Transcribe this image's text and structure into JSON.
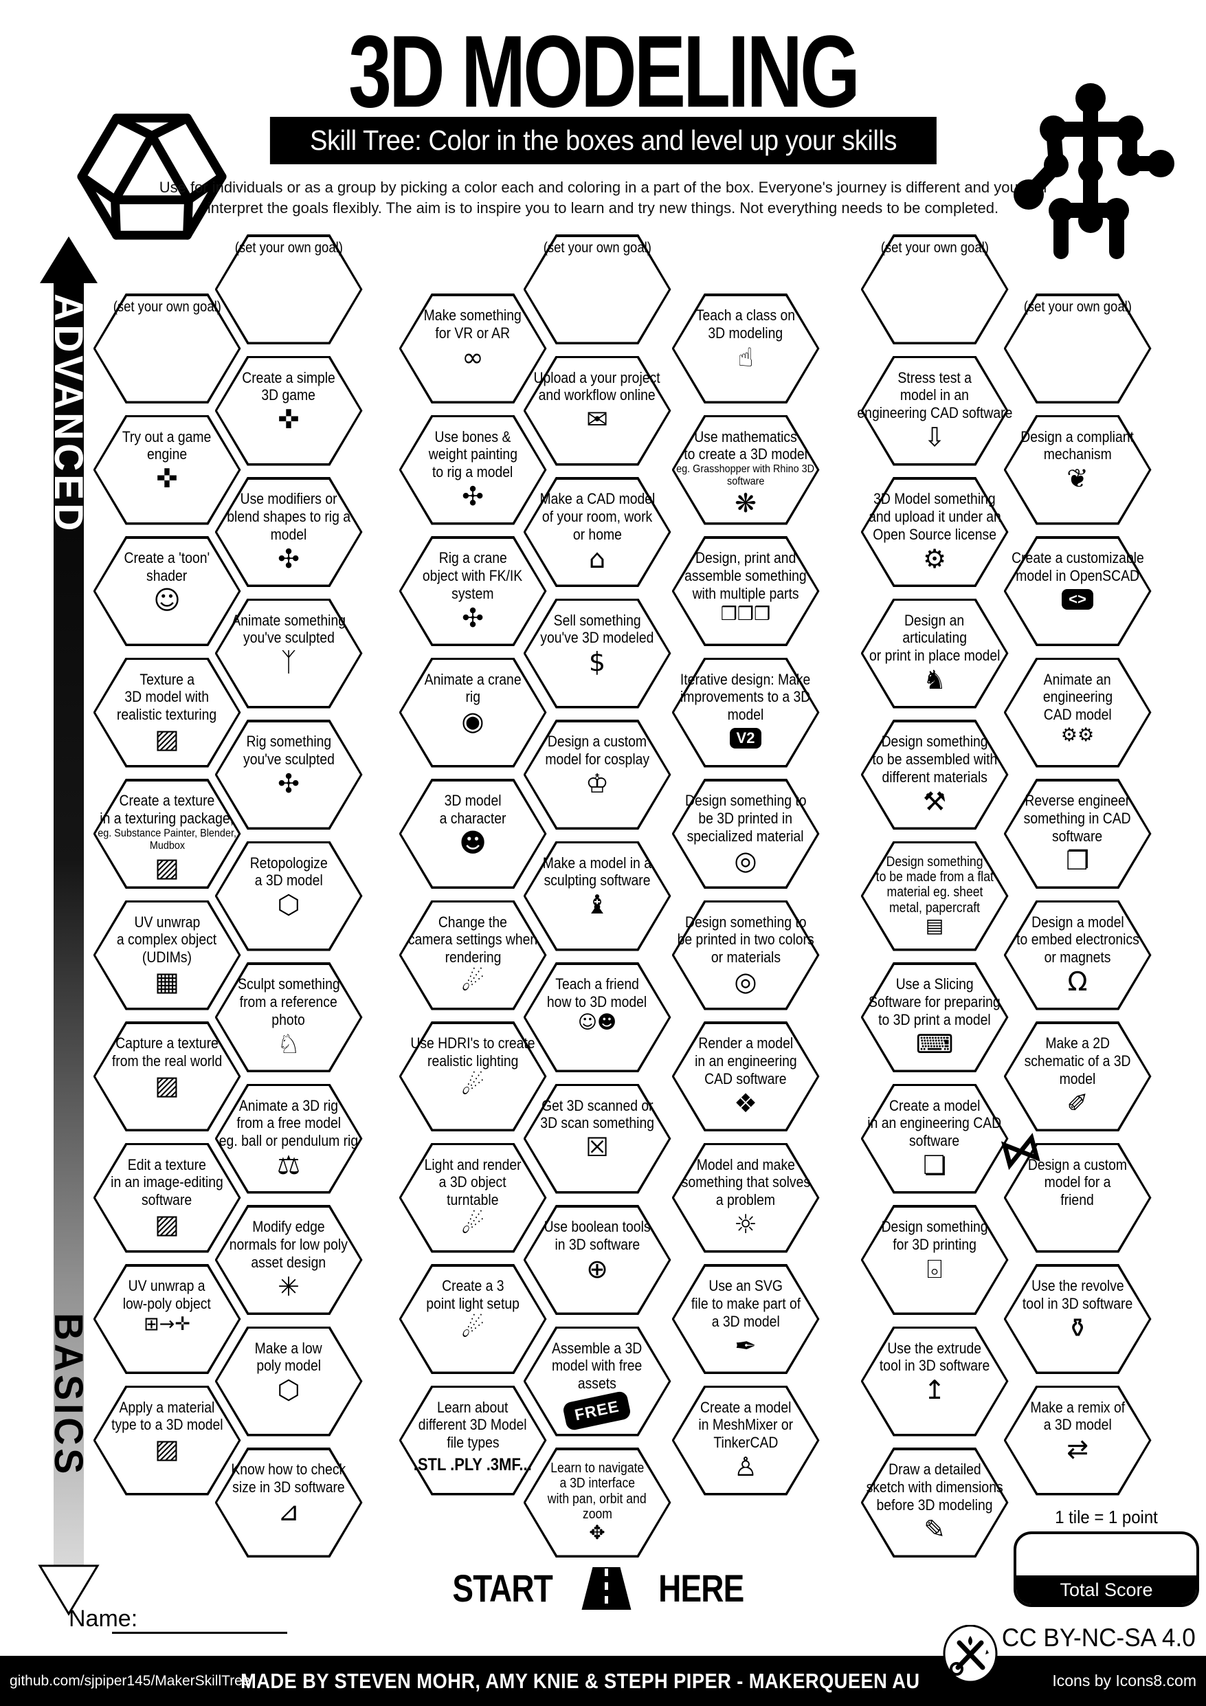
{
  "title": "3D MODELING",
  "subtitle": "Skill Tree:  Color in the boxes and level up your skills",
  "intro_line1": "Use for individuals or as a group by picking a color each and coloring in a part of the box.  Everyone's journey is different and you can",
  "intro_line2": "interpret the goals flexibly.  The aim is to inspire you to learn and try new things. Not everything needs to be completed.",
  "axis": {
    "advanced": "ADVANCED",
    "basics": "BASICS"
  },
  "start_here": {
    "start": "START",
    "here": "HERE"
  },
  "score": {
    "tile_note": "1 tile = 1 point",
    "total_label": "Total Score"
  },
  "name_label": "Name:",
  "license": "CC BY-NC-SA 4.0",
  "footer": {
    "left": "github.com/sjpiper145/MakerSkillTree",
    "center": "MADE BY STEVEN MOHR, AMY KNIE & STEPH PIPER  -  MAKERQUEEN AU",
    "right": "Icons by Icons8.com"
  },
  "colors": {
    "ink": "#000000",
    "paper": "#ffffff"
  },
  "icon_glyphs": {
    "gamepad-icon": "✜",
    "toon-face-icon": "☺",
    "texture-swatch-icon": "▨",
    "udim-grid-icon": "▦",
    "cube-unwrap-icon": "⊞→✛",
    "rig-icon": "✣",
    "walking-person-icon": "ᛉ",
    "wireframe-hexagon-icon": "⬡",
    "dog-icon": "♘",
    "pendulum-icon": "⚖",
    "vertex-normals-icon": "✳",
    "ruler-icon": "⊿",
    "vr-goggles-icon": "∞",
    "camera-icon": "◉",
    "character-face-icon": "☻",
    "spotlight-icon": "☄",
    "document-upload-icon": "✉",
    "house-icon": "⌂",
    "money-bag-icon": "$",
    "cosplay-icon": "♔",
    "statue-icon": "♝",
    "teach-friends-icon": "☺☻",
    "body-scan-icon": "☒",
    "boolean-icon": "⊕",
    "axis-icon": "✥",
    "presenter-icon": "☝",
    "gear-flower-icon": "❋",
    "cubes-icon": "❒❒❒",
    "filament-spool-icon": "◎",
    "sparkle-cube-icon": "❖",
    "lightbulb-icon": "☼",
    "bezier-pen-icon": "✒",
    "rabbit-icon": "♙",
    "stress-press-icon": "⇩",
    "open-source-gear-icon": "⚙",
    "dragon-icon": "♞",
    "tools-icon": "⚒",
    "flat-sheet-icon": "▤",
    "slicer-laptop-icon": "⌨",
    "cad-cube-icon": "❏",
    "printer-icon": "⌻",
    "extrude-icon": "↥",
    "sketch-icon": "✎",
    "brain-icon": "❦",
    "gears-icon": "⚙⚙",
    "wire-cube-icon": "❐",
    "led-icon": "Ω",
    "schematic-icon": "✐",
    "gift-bow-icon": "⋈",
    "vase-icon": "⚱",
    "remix-arrows-icon": "⇄",
    "free-badge": "FREE",
    "v2-badge": "V2",
    "code-badge": "<>"
  },
  "hexes": [
    {
      "col": 0,
      "row": 0,
      "goal": true,
      "lines": [
        "(set your own goal)"
      ]
    },
    {
      "col": 0,
      "row": 1,
      "lines": [
        "Try out a game",
        "engine"
      ],
      "icon": "gamepad-icon"
    },
    {
      "col": 0,
      "row": 2,
      "lines": [
        "Create a 'toon'",
        "shader"
      ],
      "icon": "toon-face-icon"
    },
    {
      "col": 0,
      "row": 3,
      "lines": [
        "Texture a",
        "3D model with",
        "realistic texturing"
      ],
      "icon": "texture-swatch-icon"
    },
    {
      "col": 0,
      "row": 4,
      "lines": [
        "Create a texture",
        "in a texturing package,"
      ],
      "sub": [
        "eg. Substance Painter, Blender,",
        "Mudbox"
      ],
      "icon": "texture-swatch-icon"
    },
    {
      "col": 0,
      "row": 5,
      "lines": [
        "UV unwrap",
        "a complex object",
        "(UDIMs)"
      ],
      "icon": "udim-grid-icon"
    },
    {
      "col": 0,
      "row": 6,
      "lines": [
        "Capture a texture",
        "from the real world"
      ],
      "icon": "texture-swatch-icon"
    },
    {
      "col": 0,
      "row": 7,
      "lines": [
        "Edit a texture",
        "in an image-editing",
        "software"
      ],
      "icon": "texture-swatch-icon"
    },
    {
      "col": 0,
      "row": 8,
      "lines": [
        "UV unwrap a",
        "low-poly object"
      ],
      "icon": "cube-unwrap-icon",
      "small_icon": true
    },
    {
      "col": 0,
      "row": 9,
      "lines": [
        "Apply a material",
        "type to a 3D model"
      ],
      "icon": "texture-swatch-icon"
    },
    {
      "col": 1,
      "row": 0,
      "goal": true,
      "lines": [
        "(set your own goal)"
      ]
    },
    {
      "col": 1,
      "row": 1,
      "lines": [
        "Create a simple",
        "3D game"
      ],
      "icon": "gamepad-icon"
    },
    {
      "col": 1,
      "row": 2,
      "lines": [
        "Use modifiers or",
        "blend shapes to rig a",
        "model"
      ],
      "icon": "rig-icon"
    },
    {
      "col": 1,
      "row": 3,
      "lines": [
        "Animate something",
        "you've sculpted"
      ],
      "icon": "walking-person-icon"
    },
    {
      "col": 1,
      "row": 4,
      "lines": [
        "Rig something",
        "you've sculpted"
      ],
      "icon": "rig-icon"
    },
    {
      "col": 1,
      "row": 5,
      "lines": [
        "Retopologize",
        "a 3D model"
      ],
      "icon": "wireframe-hexagon-icon"
    },
    {
      "col": 1,
      "row": 6,
      "lines": [
        "Sculpt something",
        "from a reference",
        "photo"
      ],
      "icon": "dog-icon"
    },
    {
      "col": 1,
      "row": 7,
      "lines": [
        "Animate a 3D rig",
        "from a free model",
        "eg. ball or pendulum rig"
      ],
      "icon": "pendulum-icon"
    },
    {
      "col": 1,
      "row": 8,
      "lines": [
        "Modify edge",
        "normals for low poly",
        "asset design"
      ],
      "icon": "vertex-normals-icon"
    },
    {
      "col": 1,
      "row": 9,
      "lines": [
        "Make a low",
        "poly model"
      ],
      "icon": "wireframe-hexagon-icon"
    },
    {
      "col": 1,
      "row": 10,
      "lines": [
        "Know how to check",
        "size in 3D software"
      ],
      "icon": "ruler-icon"
    },
    {
      "col": 2,
      "row": 0,
      "lines": [
        "Make something",
        "for VR or AR"
      ],
      "icon": "vr-goggles-icon"
    },
    {
      "col": 2,
      "row": 1,
      "lines": [
        "Use bones &",
        "weight painting",
        "to rig a model"
      ],
      "icon": "rig-icon"
    },
    {
      "col": 2,
      "row": 2,
      "lines": [
        "Rig a crane",
        "object with FK/IK",
        "system"
      ],
      "icon": "rig-icon"
    },
    {
      "col": 2,
      "row": 3,
      "lines": [
        "Animate a crane",
        "rig"
      ],
      "icon": "camera-icon"
    },
    {
      "col": 2,
      "row": 4,
      "lines": [
        "3D model",
        "a character"
      ],
      "icon": "character-face-icon"
    },
    {
      "col": 2,
      "row": 5,
      "lines": [
        "Change the",
        "camera settings when",
        "rendering"
      ],
      "icon": "spotlight-icon"
    },
    {
      "col": 2,
      "row": 6,
      "lines": [
        "Use HDRI's to create",
        "realistic lighting"
      ],
      "icon": "spotlight-icon"
    },
    {
      "col": 2,
      "row": 7,
      "lines": [
        "Light and render",
        "a 3D object",
        "turntable"
      ],
      "icon": "spotlight-icon"
    },
    {
      "col": 2,
      "row": 8,
      "lines": [
        "Create a 3",
        "point light setup"
      ],
      "icon": "spotlight-icon"
    },
    {
      "col": 2,
      "row": 9,
      "lines": [
        "Learn about",
        "different 3D Model",
        "file types"
      ],
      "big_sub": ".STL .PLY .3MF..."
    },
    {
      "col": 3,
      "row": 0,
      "goal": true,
      "lines": [
        "(set your own goal)"
      ]
    },
    {
      "col": 3,
      "row": 1,
      "lines": [
        "Upload a your project",
        "and workflow online"
      ],
      "icon": "document-upload-icon"
    },
    {
      "col": 3,
      "row": 2,
      "lines": [
        "Make a CAD model",
        "of your room, work",
        "or home"
      ],
      "icon": "house-icon"
    },
    {
      "col": 3,
      "row": 3,
      "lines": [
        "Sell something",
        "you've 3D modeled"
      ],
      "icon": "money-bag-icon"
    },
    {
      "col": 3,
      "row": 4,
      "lines": [
        "Design a custom",
        "model for cosplay"
      ],
      "icon": "cosplay-icon"
    },
    {
      "col": 3,
      "row": 5,
      "lines": [
        "Make a model in a",
        "sculpting software"
      ],
      "icon": "statue-icon"
    },
    {
      "col": 3,
      "row": 6,
      "lines": [
        "Teach a friend",
        "how to 3D model"
      ],
      "icon": "teach-friends-icon",
      "small_icon": true
    },
    {
      "col": 3,
      "row": 7,
      "lines": [
        "Get 3D scanned or",
        "3D scan something"
      ],
      "icon": "body-scan-icon"
    },
    {
      "col": 3,
      "row": 8,
      "lines": [
        "Use boolean tools",
        "in 3D software"
      ],
      "icon": "boolean-icon"
    },
    {
      "col": 3,
      "row": 9,
      "lines": [
        "Assemble a 3D",
        "model with free",
        "assets"
      ],
      "icon": "free-badge"
    },
    {
      "col": 3,
      "row": 10,
      "lines": [
        "Learn to navigate",
        "a 3D interface",
        "with pan, orbit and",
        "zoom"
      ],
      "icon": "axis-icon"
    },
    {
      "col": 4,
      "row": 0,
      "lines": [
        "Teach a class on",
        "3D modeling"
      ],
      "icon": "presenter-icon"
    },
    {
      "col": 4,
      "row": 1,
      "lines": [
        "Use mathematics",
        "to create a 3D model"
      ],
      "sub": [
        "eg. Grasshopper with Rhino 3D",
        "software"
      ],
      "icon": "gear-flower-icon"
    },
    {
      "col": 4,
      "row": 2,
      "lines": [
        "Design, print and",
        "assemble something",
        "with multiple parts"
      ],
      "icon": "cubes-icon",
      "small_icon": true
    },
    {
      "col": 4,
      "row": 3,
      "lines": [
        "Iterative design:  Make",
        "improvements to a 3D",
        "model"
      ],
      "icon": "v2-badge"
    },
    {
      "col": 4,
      "row": 4,
      "lines": [
        "Design something to",
        "be 3D printed in",
        "specialized material"
      ],
      "icon": "filament-spool-icon"
    },
    {
      "col": 4,
      "row": 5,
      "lines": [
        "Design something to",
        "be printed in two colors",
        "or materials"
      ],
      "icon": "filament-spool-icon"
    },
    {
      "col": 4,
      "row": 6,
      "lines": [
        "Render a model",
        "in an engineering",
        "CAD software"
      ],
      "icon": "sparkle-cube-icon"
    },
    {
      "col": 4,
      "row": 7,
      "lines": [
        "Model and make",
        "something that solves",
        "a problem"
      ],
      "icon": "lightbulb-icon"
    },
    {
      "col": 4,
      "row": 8,
      "lines": [
        "Use an SVG",
        "file to make part of",
        "a 3D model"
      ],
      "icon": "bezier-pen-icon"
    },
    {
      "col": 4,
      "row": 9,
      "lines": [
        "Create a model",
        "in MeshMixer or",
        "TinkerCAD"
      ],
      "icon": "rabbit-icon"
    },
    {
      "col": 5,
      "row": 0,
      "goal": true,
      "lines": [
        "(set your own goal)"
      ]
    },
    {
      "col": 5,
      "row": 1,
      "lines": [
        "Stress test a",
        "model in an",
        "engineering CAD software"
      ],
      "icon": "stress-press-icon"
    },
    {
      "col": 5,
      "row": 2,
      "lines": [
        "3D Model something",
        "and upload it under an",
        "Open Source license"
      ],
      "icon": "open-source-gear-icon"
    },
    {
      "col": 5,
      "row": 3,
      "lines": [
        "Design an",
        "articulating",
        "or print in place model"
      ],
      "icon": "dragon-icon"
    },
    {
      "col": 5,
      "row": 4,
      "lines": [
        "Design something",
        "to be assembled with",
        "different materials"
      ],
      "icon": "tools-icon"
    },
    {
      "col": 5,
      "row": 5,
      "lines": [
        "Design something",
        "to be made from a flat",
        "material eg. sheet",
        "metal, papercraft"
      ],
      "icon": "flat-sheet-icon"
    },
    {
      "col": 5,
      "row": 6,
      "lines": [
        "Use a Slicing",
        "Software for preparing",
        "to 3D print a model"
      ],
      "icon": "slicer-laptop-icon"
    },
    {
      "col": 5,
      "row": 7,
      "lines": [
        "Create a model",
        "in an engineering CAD",
        "software"
      ],
      "icon": "cad-cube-icon"
    },
    {
      "col": 5,
      "row": 8,
      "lines": [
        "Design something",
        "for 3D printing"
      ],
      "icon": "printer-icon"
    },
    {
      "col": 5,
      "row": 9,
      "lines": [
        "Use the extrude",
        "tool in 3D software"
      ],
      "icon": "extrude-icon"
    },
    {
      "col": 5,
      "row": 10,
      "lines": [
        "Draw a detailed",
        "sketch with dimensions",
        "before 3D modeling"
      ],
      "icon": "sketch-icon"
    },
    {
      "col": 6,
      "row": 0,
      "goal": true,
      "lines": [
        "(set your own goal)"
      ]
    },
    {
      "col": 6,
      "row": 1,
      "lines": [
        "Design a compliant",
        "mechanism"
      ],
      "icon": "brain-icon"
    },
    {
      "col": 6,
      "row": 2,
      "lines": [
        "Create a customizable",
        "model in OpenSCAD"
      ],
      "icon": "code-badge"
    },
    {
      "col": 6,
      "row": 3,
      "lines": [
        "Animate an",
        "engineering",
        "CAD model"
      ],
      "icon": "gears-icon",
      "small_icon": true
    },
    {
      "col": 6,
      "row": 4,
      "lines": [
        "Reverse engineer",
        "something in CAD",
        "software"
      ],
      "icon": "wire-cube-icon"
    },
    {
      "col": 6,
      "row": 5,
      "lines": [
        "Design a model",
        "to embed electronics",
        "or magnets"
      ],
      "icon": "led-icon"
    },
    {
      "col": 6,
      "row": 6,
      "lines": [
        "Make a 2D",
        "schematic of a 3D",
        "model"
      ],
      "icon": "schematic-icon"
    },
    {
      "col": 6,
      "row": 7,
      "lines": [
        "Design a custom",
        "model for a",
        "friend"
      ],
      "icon": "gift-bow-icon",
      "corner": true
    },
    {
      "col": 6,
      "row": 8,
      "lines": [
        "Use the revolve",
        "tool in 3D software"
      ],
      "icon": "vase-icon"
    },
    {
      "col": 6,
      "row": 9,
      "lines": [
        "Make a remix of",
        "a 3D model"
      ],
      "icon": "remix-arrows-icon"
    }
  ]
}
